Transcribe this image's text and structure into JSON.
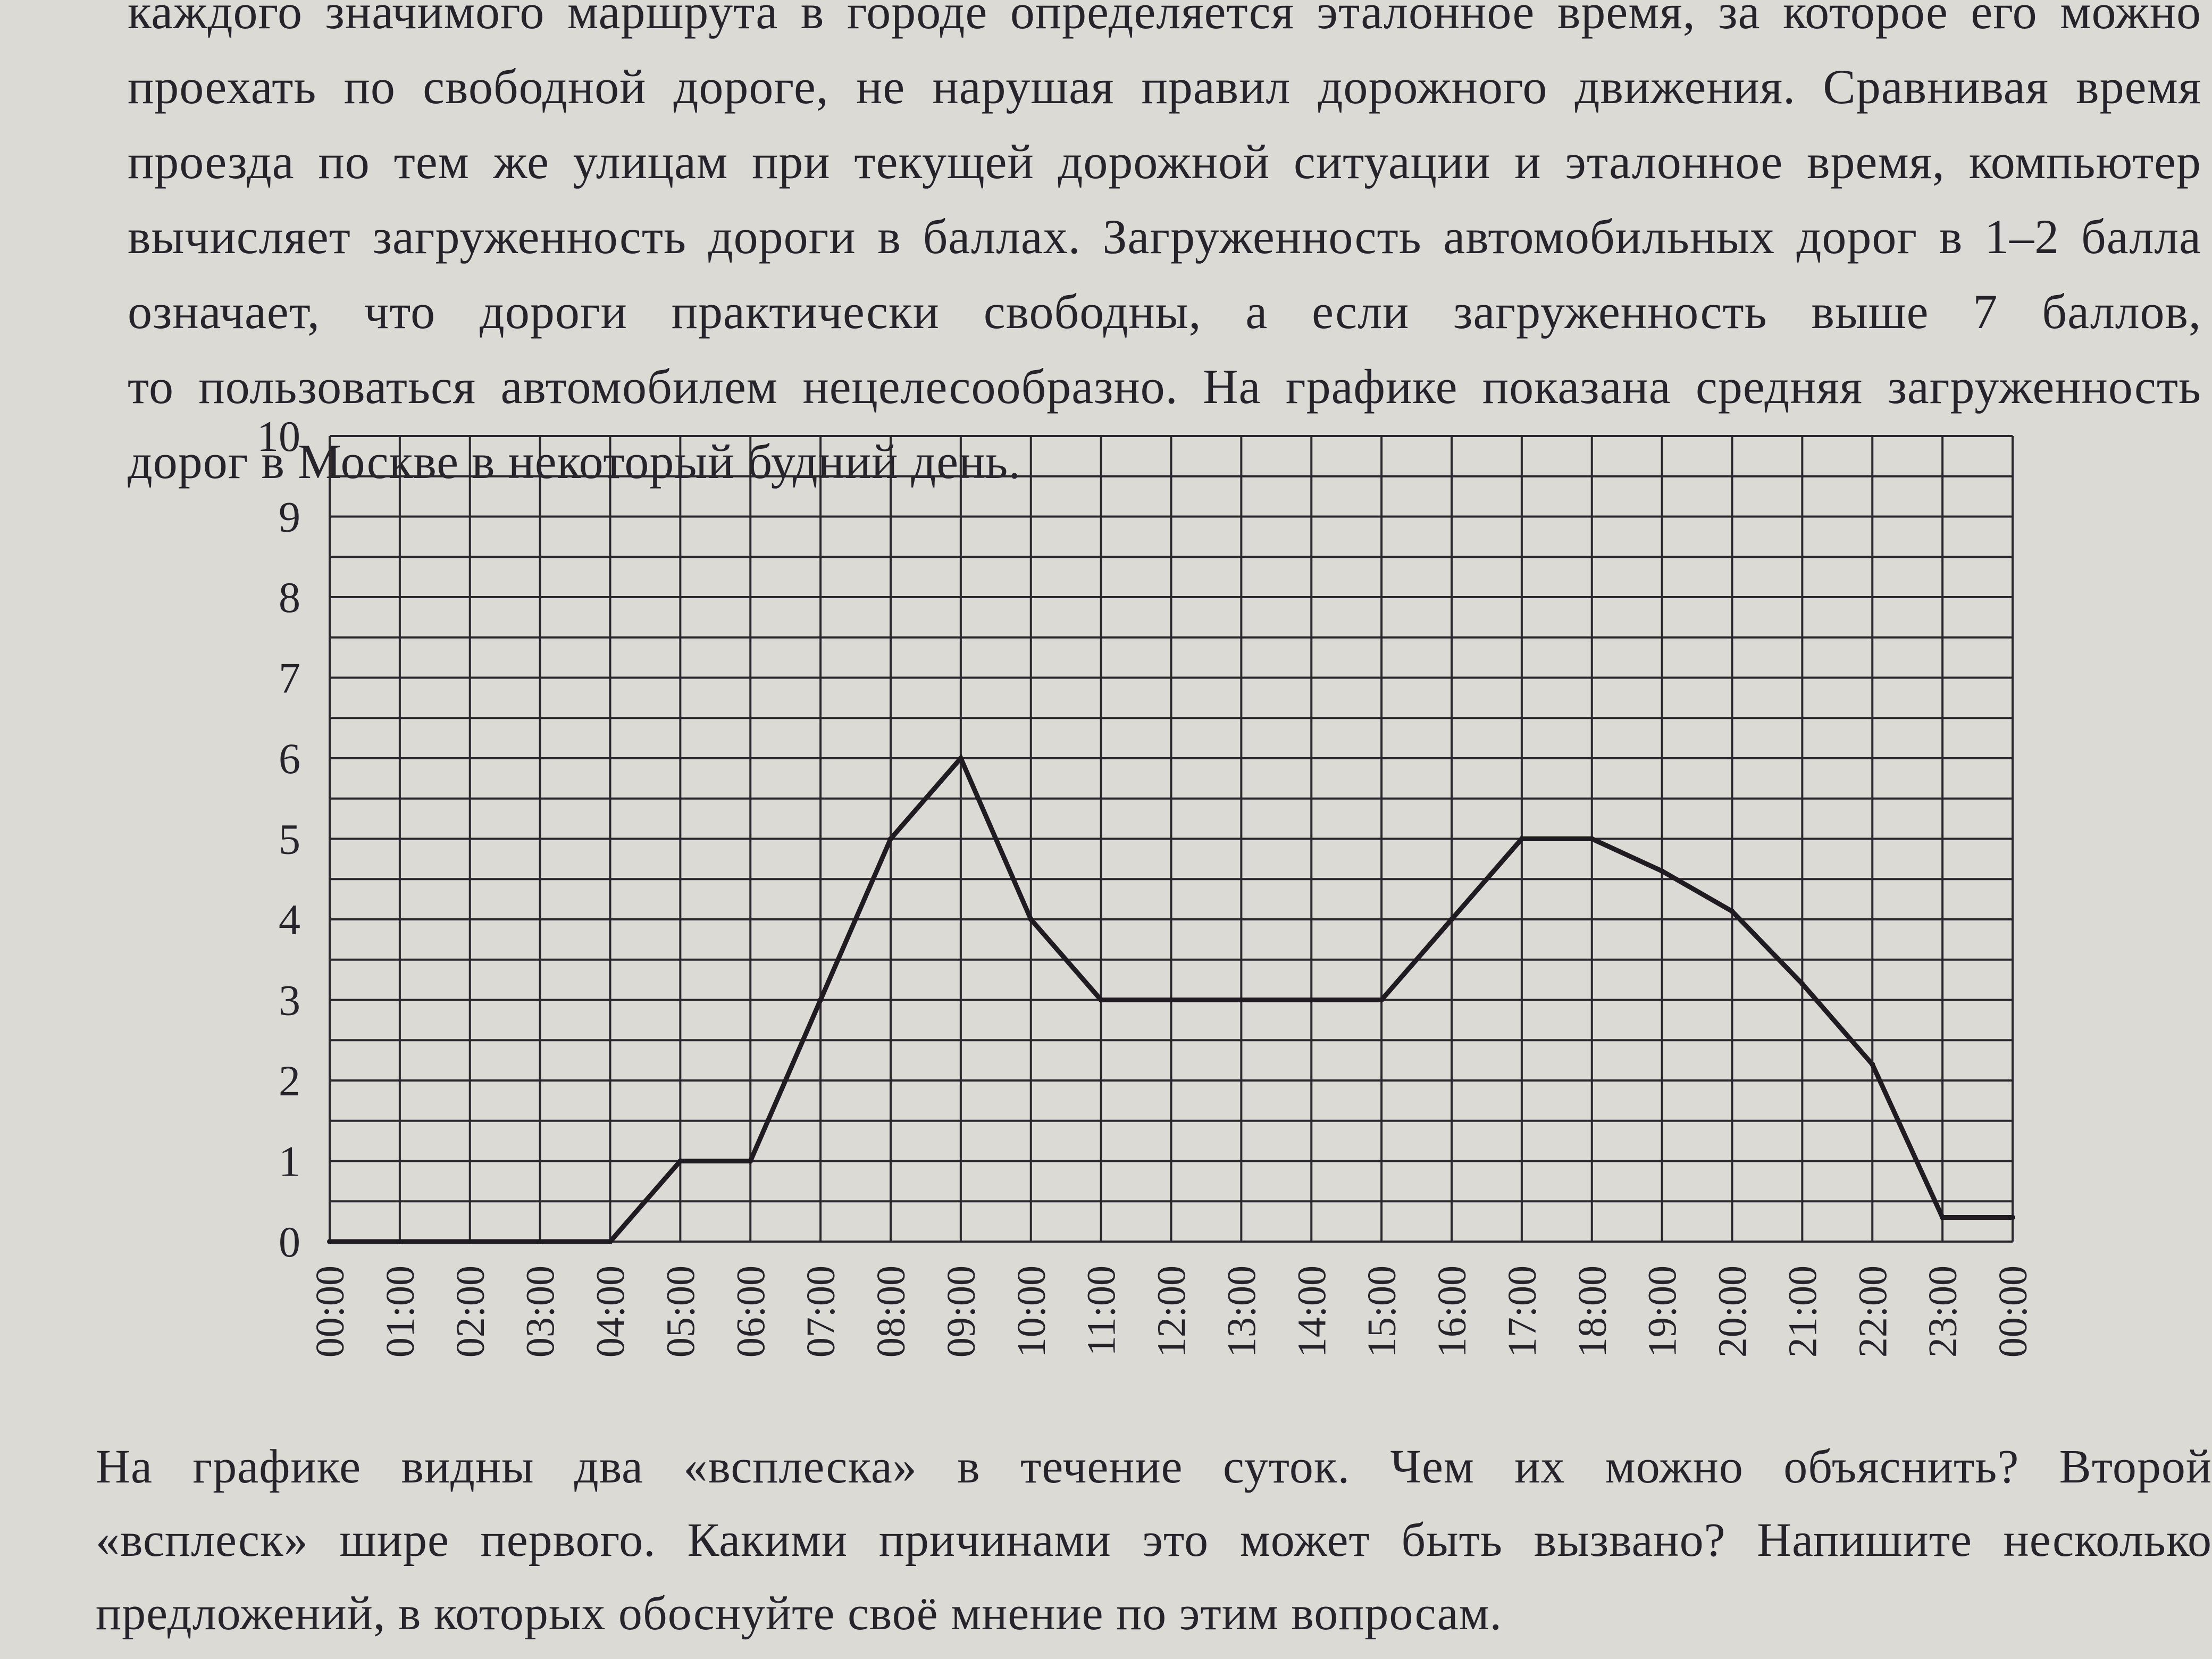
{
  "intro": {
    "lines": [
      "каждого значимого маршрута в городе определяется эталонное время, за которое его можно",
      "проехать по свободной дороге, не нарушая правил дорожного движения. Сравнивая время",
      "проезда по тем же улицам при текущей дорожной ситуации и эталонное время, компьютер",
      "вычисляет загруженность дороги в баллах. Загруженность автомобильных дорог в 1–2 балла",
      "означает, что дороги практически свободны, а если загруженность выше 7 баллов,",
      "то пользоваться автомобилем нецелесообразно. На графике показана средняя загруженность",
      "дорог в Москве в некоторый будний день."
    ]
  },
  "question": {
    "lines": [
      "На графике видны два «всплеска» в течение суток. Чем их можно объяснить? Второй",
      "«всплеск» шире первого. Какими причинами это может быть вызвано? Напишите несколько",
      "предложений, в которых обоснуйте своё мнение по этим вопросам."
    ]
  },
  "chart_data": {
    "type": "line",
    "title": "",
    "xlabel": "",
    "ylabel": "",
    "categories": [
      "00:00",
      "01:00",
      "02:00",
      "03:00",
      "04:00",
      "05:00",
      "06:00",
      "07:00",
      "08:00",
      "09:00",
      "10:00",
      "11:00",
      "12:00",
      "13:00",
      "14:00",
      "15:00",
      "16:00",
      "17:00",
      "18:00",
      "19:00",
      "20:00",
      "21:00",
      "22:00",
      "23:00",
      "00:00"
    ],
    "yticks": [
      "0",
      "1",
      "2",
      "3",
      "4",
      "5",
      "6",
      "7",
      "8",
      "9",
      "10"
    ],
    "ylim": [
      0,
      10
    ],
    "grid": true,
    "series": [
      {
        "values": [
          0,
          0,
          0,
          0,
          0,
          1,
          1,
          3,
          5,
          6,
          4,
          3,
          3,
          3,
          3,
          3,
          4,
          5,
          5,
          4.6,
          4.1,
          3.2,
          2.2,
          0.3,
          0.3
        ]
      }
    ],
    "colors": {
      "line": "#1f1b21",
      "grid": "#2b272c",
      "text": "#27232a",
      "paper": "#dcdad5"
    }
  }
}
